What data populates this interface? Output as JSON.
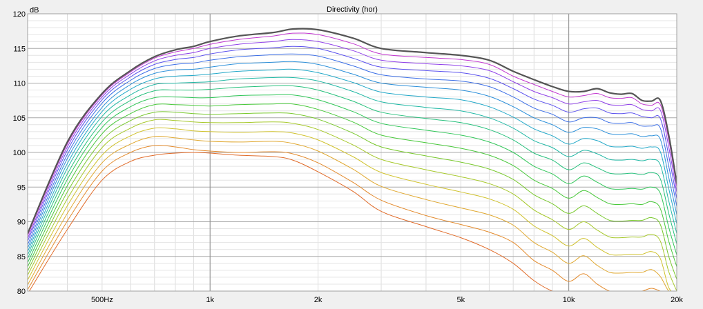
{
  "chart_data": {
    "type": "line",
    "title": "Directivity (hor)",
    "y_unit": "dB",
    "x_scale": "log",
    "xlim": [
      310,
      20000
    ],
    "ylim": [
      80,
      120
    ],
    "x_ticks": [
      {
        "value": 500,
        "label": "500Hz"
      },
      {
        "value": 1000,
        "label": "1k"
      },
      {
        "value": 2000,
        "label": "2k"
      },
      {
        "value": 5000,
        "label": "5k"
      },
      {
        "value": 10000,
        "label": "10k"
      },
      {
        "value": 20000,
        "label": "20k"
      }
    ],
    "y_ticks": [
      {
        "value": 80,
        "label": "80"
      },
      {
        "value": 85,
        "label": "85"
      },
      {
        "value": 90,
        "label": "90"
      },
      {
        "value": 95,
        "label": "95"
      },
      {
        "value": 100,
        "label": "100"
      },
      {
        "value": 105,
        "label": "105"
      },
      {
        "value": 110,
        "label": "110"
      },
      {
        "value": 115,
        "label": "115"
      },
      {
        "value": 120,
        "label": "120"
      }
    ],
    "grid": true,
    "legend": "none",
    "x": [
      310,
      400,
      500,
      600,
      700,
      800,
      900,
      1000,
      1200,
      1500,
      1700,
      2000,
      2500,
      3000,
      4000,
      5000,
      6000,
      7000,
      8000,
      9000,
      10000,
      11000,
      12000,
      13000,
      14000,
      15000,
      16000,
      17000,
      18000,
      19000,
      20000
    ],
    "series": [
      {
        "color": "#555555",
        "width": 2.2,
        "values": [
          88.3,
          101.5,
          108.5,
          111.8,
          113.8,
          114.8,
          115.3,
          116.0,
          116.8,
          117.3,
          117.8,
          117.7,
          116.5,
          115.0,
          114.4,
          114.0,
          113.3,
          111.7,
          110.5,
          109.5,
          108.8,
          108.8,
          109.2,
          108.6,
          108.4,
          108.5,
          107.5,
          107.4,
          107.5,
          102.5,
          95.5
        ]
      },
      {
        "color": "#c236d0",
        "values": [
          88.0,
          101.2,
          108.3,
          111.6,
          113.6,
          114.5,
          115.0,
          115.6,
          116.3,
          116.8,
          117.2,
          117.0,
          115.7,
          114.2,
          113.7,
          113.4,
          112.7,
          111.0,
          109.8,
          108.8,
          108.0,
          108.2,
          108.5,
          107.9,
          107.8,
          107.9,
          107.0,
          106.8,
          106.9,
          101.8,
          95.0
        ]
      },
      {
        "color": "#8f40e8",
        "values": [
          87.6,
          100.8,
          108.0,
          111.3,
          113.2,
          114.0,
          114.4,
          115.0,
          115.6,
          116.0,
          116.3,
          116.0,
          114.7,
          113.3,
          112.8,
          112.5,
          111.8,
          110.2,
          108.8,
          107.9,
          107.0,
          107.3,
          107.5,
          106.9,
          106.8,
          106.9,
          106.2,
          106.0,
          106.1,
          100.8,
          94.2
        ]
      },
      {
        "color": "#5a50ee",
        "values": [
          87.2,
          100.3,
          107.6,
          110.9,
          112.7,
          113.4,
          113.7,
          114.2,
          114.8,
          115.1,
          115.3,
          115.0,
          113.6,
          112.3,
          111.8,
          111.5,
          110.7,
          109.2,
          107.7,
          106.8,
          105.8,
          106.3,
          106.4,
          105.7,
          105.6,
          105.7,
          105.2,
          105.0,
          104.9,
          99.5,
          93.3
        ]
      },
      {
        "color": "#3b6ee6",
        "values": [
          86.7,
          99.7,
          107.1,
          110.4,
          112.1,
          112.7,
          112.9,
          113.3,
          113.8,
          114.1,
          114.2,
          113.9,
          112.5,
          111.2,
          110.6,
          110.3,
          109.5,
          108.0,
          106.4,
          105.5,
          104.4,
          105.0,
          105.0,
          104.3,
          104.2,
          104.3,
          103.8,
          103.8,
          103.5,
          98.0,
          92.2
        ]
      },
      {
        "color": "#2b8fd9",
        "values": [
          86.2,
          99.1,
          106.5,
          109.8,
          111.4,
          111.9,
          112.0,
          112.3,
          112.8,
          113.0,
          113.1,
          112.7,
          111.3,
          110.0,
          109.4,
          109.0,
          108.1,
          106.6,
          105.0,
          104.0,
          102.9,
          103.6,
          103.4,
          102.7,
          102.6,
          102.7,
          102.3,
          102.4,
          101.9,
          96.4,
          91.0
        ]
      },
      {
        "color": "#22a8c8",
        "values": [
          85.7,
          98.4,
          105.9,
          109.1,
          110.6,
          111.0,
          111.1,
          111.3,
          111.7,
          111.9,
          112.0,
          111.5,
          110.1,
          108.7,
          108.0,
          107.6,
          106.6,
          105.1,
          103.4,
          102.4,
          101.2,
          102.0,
          101.7,
          100.9,
          100.8,
          100.9,
          100.6,
          100.8,
          100.1,
          94.8,
          89.7
        ]
      },
      {
        "color": "#22b8a5",
        "values": [
          85.2,
          97.7,
          105.2,
          108.3,
          109.8,
          110.0,
          110.1,
          110.2,
          110.6,
          110.8,
          110.8,
          110.3,
          108.8,
          107.3,
          106.5,
          106.0,
          105.0,
          103.5,
          101.7,
          100.7,
          99.4,
          100.3,
          99.8,
          99.0,
          98.9,
          99.0,
          98.8,
          99.0,
          98.2,
          93.0,
          88.3
        ]
      },
      {
        "color": "#26c07c",
        "values": [
          84.7,
          96.9,
          104.4,
          107.5,
          108.9,
          109.0,
          109.0,
          109.1,
          109.4,
          109.6,
          109.6,
          109.0,
          107.4,
          105.8,
          104.9,
          104.3,
          103.3,
          101.8,
          99.9,
          98.9,
          97.5,
          98.5,
          97.8,
          97.0,
          96.9,
          97.0,
          96.8,
          97.1,
          96.2,
          91.2,
          86.8
        ]
      },
      {
        "color": "#30c658",
        "values": [
          84.1,
          96.1,
          103.6,
          106.6,
          107.9,
          108.0,
          107.9,
          107.9,
          108.2,
          108.3,
          108.3,
          107.6,
          105.9,
          104.2,
          103.2,
          102.5,
          101.5,
          100.0,
          98.0,
          96.9,
          95.5,
          96.6,
          95.7,
          94.8,
          94.7,
          94.8,
          94.7,
          95.0,
          94.1,
          89.2,
          85.2
        ]
      },
      {
        "color": "#48c83a",
        "values": [
          83.5,
          95.2,
          102.7,
          105.6,
          106.9,
          106.9,
          106.8,
          106.7,
          106.9,
          107.0,
          107.0,
          106.2,
          104.4,
          102.5,
          101.4,
          100.6,
          99.6,
          98.1,
          96.0,
          94.8,
          93.4,
          94.5,
          93.5,
          92.6,
          92.5,
          92.6,
          92.5,
          92.9,
          91.9,
          87.2,
          83.5
        ]
      },
      {
        "color": "#78c82c",
        "values": [
          82.9,
          94.3,
          101.7,
          104.6,
          105.8,
          105.8,
          105.6,
          105.5,
          105.6,
          105.7,
          105.6,
          104.8,
          102.8,
          100.8,
          99.5,
          98.6,
          97.6,
          96.1,
          93.9,
          92.6,
          91.2,
          92.3,
          91.2,
          90.2,
          90.1,
          90.2,
          90.2,
          90.6,
          89.6,
          85.0,
          81.7
        ]
      },
      {
        "color": "#a6c82a",
        "values": [
          82.3,
          93.3,
          100.7,
          103.5,
          104.7,
          104.6,
          104.4,
          104.3,
          104.3,
          104.4,
          104.2,
          103.3,
          101.1,
          99.0,
          97.5,
          96.5,
          95.5,
          94.0,
          91.7,
          90.3,
          88.9,
          90.0,
          88.8,
          87.8,
          87.7,
          87.8,
          87.8,
          88.2,
          87.2,
          82.8,
          80.0
        ]
      },
      {
        "color": "#d0c22e",
        "values": [
          81.6,
          92.3,
          99.6,
          102.4,
          103.5,
          103.4,
          103.1,
          103.0,
          102.9,
          103.0,
          102.8,
          101.8,
          99.4,
          97.1,
          95.4,
          94.3,
          93.3,
          91.8,
          89.4,
          88.0,
          86.5,
          87.6,
          86.3,
          85.3,
          85.2,
          85.3,
          85.3,
          85.7,
          84.7,
          80.5,
          79.0
        ]
      },
      {
        "color": "#e0a830",
        "values": [
          80.9,
          91.2,
          98.5,
          101.2,
          102.3,
          102.1,
          101.8,
          101.6,
          101.5,
          101.6,
          101.3,
          100.2,
          97.6,
          95.1,
          93.2,
          92.0,
          91.0,
          89.5,
          87.0,
          85.6,
          84.0,
          85.1,
          83.7,
          82.7,
          82.6,
          82.7,
          82.7,
          83.1,
          82.1,
          80.0,
          79.0
        ]
      },
      {
        "color": "#e38a2c",
        "values": [
          80.2,
          90.1,
          97.3,
          100.0,
          101.0,
          100.8,
          100.4,
          100.2,
          100.0,
          100.1,
          99.8,
          98.5,
          95.7,
          93.1,
          90.9,
          89.6,
          88.5,
          87.0,
          84.4,
          83.0,
          81.4,
          82.5,
          81.0,
          80.0,
          80.0,
          80.0,
          80.0,
          80.4,
          80.0,
          79.0,
          79.0
        ]
      },
      {
        "color": "#e06a28",
        "values": [
          79.6,
          88.9,
          96.0,
          98.7,
          99.6,
          99.9,
          100.0,
          99.9,
          99.6,
          99.4,
          98.9,
          97.2,
          94.4,
          91.5,
          89.3,
          87.7,
          86.0,
          84.0,
          81.5,
          80.0,
          79.3,
          79.6,
          79.0,
          79.0,
          79.0,
          79.0,
          79.0,
          79.0,
          79.0,
          79.0,
          79.0
        ]
      }
    ]
  }
}
